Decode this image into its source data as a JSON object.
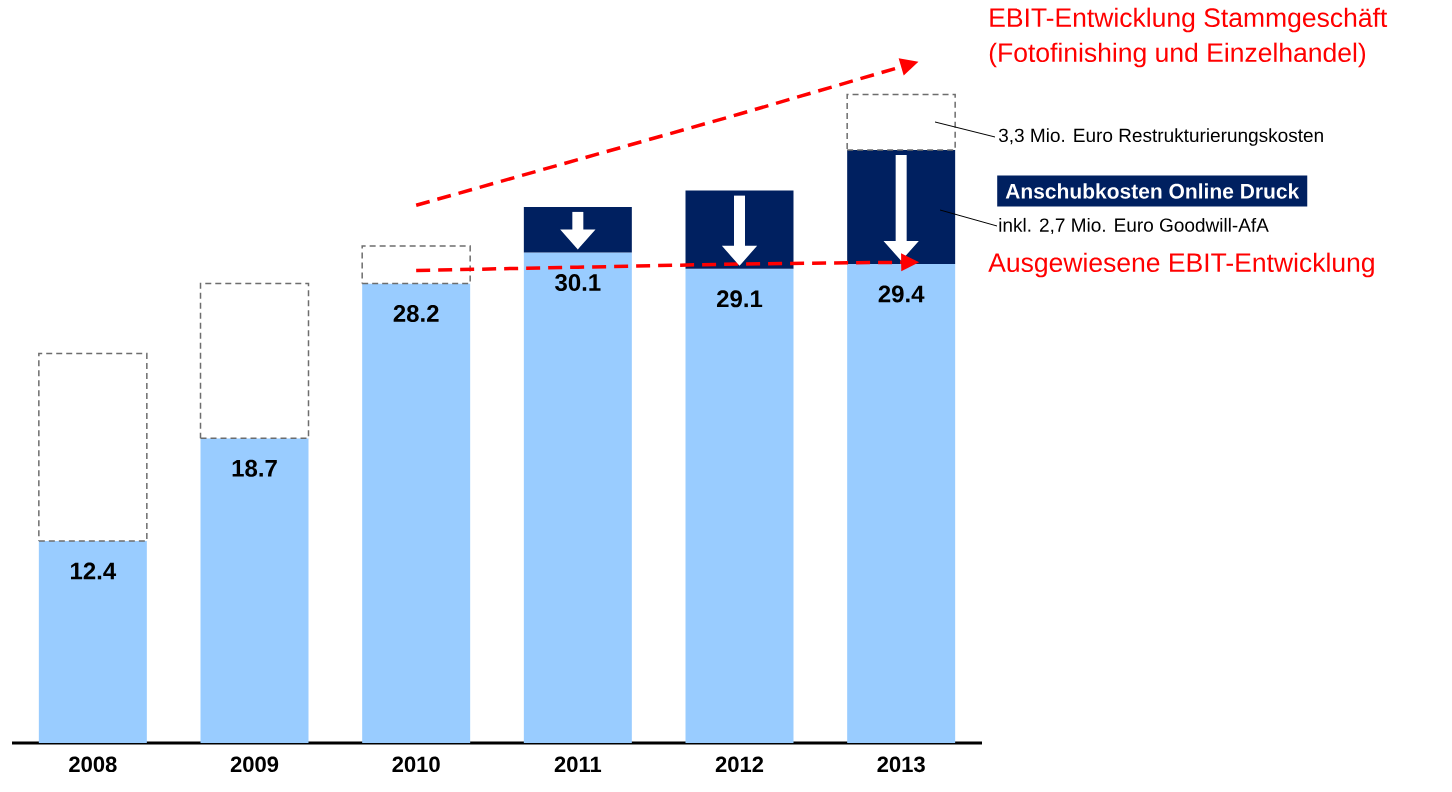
{
  "chart_data": {
    "type": "bar",
    "stacked": true,
    "tick_labels": "x",
    "categories": [
      "2008",
      "2009",
      "2010",
      "2011",
      "2012",
      "2013"
    ],
    "series": [
      {
        "color": "#99ccff",
        "values": [
          12.4,
          18.7,
          28.2,
          30.1,
          29.1,
          29.4
        ],
        "value_labels": [
          "12.4",
          "18.7",
          "28.2",
          "30.1",
          "29.1",
          "29.4"
        ]
      },
      {
        "name": "Anschubkosten Online Druck",
        "color": "#002060",
        "values": [
          null,
          null,
          null,
          2.8,
          4.8,
          7.0
        ]
      },
      {
        "color": "#6d6d6d",
        "line_style": "dashed",
        "values": [
          11.5,
          9.5,
          2.3,
          null,
          null,
          3.4
        ]
      },
      {
        "type": "line",
        "color": "#ff0000",
        "line_style": "dashed",
        "values": [
          null,
          null,
          33.0,
          35.8,
          38.6,
          41.5
        ]
      },
      {
        "type": "line",
        "color": "#ff0000",
        "line_style": "dashed",
        "values": [
          null,
          null,
          29.0,
          29.2,
          29.4,
          29.5
        ]
      }
    ],
    "annotations": [
      "EBIT-Entwicklung Stammgeschäft",
      "(Fotofinishing und Einzelhandel)",
      "3,3 Mio. Euro Restrukturierungskosten",
      "inkl. 2,7 Mio. Euro Goodwill-AfA",
      "Ausgewiesene EBIT-Entwicklung"
    ]
  }
}
